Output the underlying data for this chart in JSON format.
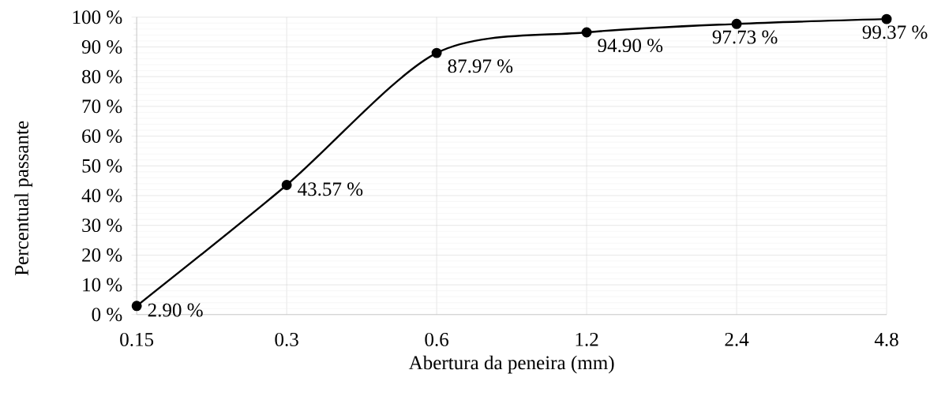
{
  "chart_data": {
    "type": "line",
    "xlabel": "Abertura da peneira (mm)",
    "ylabel": "Percentual passante",
    "categories": [
      "0.15",
      "0.3",
      "0.6",
      "1.2",
      "2.4",
      "4.8"
    ],
    "series": [
      {
        "color": "#000000",
        "values": [
          2.9,
          43.57,
          87.97,
          94.9,
          97.73,
          99.37
        ],
        "value_labels": [
          "2.90 %",
          "43.57 %",
          "87.97 %",
          "94.90 %",
          "97.73 %",
          "99.37 %"
        ]
      }
    ],
    "ylim": [
      0,
      100
    ],
    "yticks": [
      {
        "value": 0,
        "label": "0 %"
      },
      {
        "value": 10,
        "label": "10 %"
      },
      {
        "value": 20,
        "label": "20 %"
      },
      {
        "value": 30,
        "label": "30 %"
      },
      {
        "value": 40,
        "label": "40 %"
      },
      {
        "value": 50,
        "label": "50 %"
      },
      {
        "value": 60,
        "label": "60 %"
      },
      {
        "value": 70,
        "label": "70 %"
      },
      {
        "value": 80,
        "label": "80 %"
      },
      {
        "value": 90,
        "label": "90 %"
      },
      {
        "value": 100,
        "label": "100 %"
      }
    ],
    "grid": true,
    "marker": "circle",
    "line_style": "solid"
  }
}
